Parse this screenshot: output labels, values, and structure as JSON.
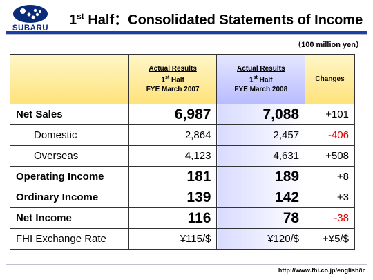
{
  "logo": {
    "text": "SUBARU",
    "icon": "pleiades-stars-logo"
  },
  "title": {
    "sup": "st",
    "prefix": "1",
    "main": " Half：Consolidated Statements of Income"
  },
  "unit": "（100 million yen）",
  "headers": {
    "prev": {
      "line1": "Actual Results",
      "line2_num": "1",
      "line2_sup": "st",
      "line2_rest": " Half",
      "line3": "FYE March 2007"
    },
    "curr": {
      "line1": "Actual Results",
      "line2_num": "1",
      "line2_sup": "st",
      "line2_rest": " Half",
      "line3": "FYE March 2008"
    },
    "changes": "Changes"
  },
  "rows": [
    {
      "label": "Net Sales",
      "prev": "6,987",
      "curr": "7,088",
      "change": "+101"
    },
    {
      "label": "Domestic",
      "prev": "2,864",
      "curr": "2,457",
      "change": "-406"
    },
    {
      "label": "Overseas",
      "prev": "4,123",
      "curr": "4,631",
      "change": "+508"
    },
    {
      "label": "Operating Income",
      "prev": "181",
      "curr": "189",
      "change": "+8"
    },
    {
      "label": "Ordinary Income",
      "prev": "139",
      "curr": "142",
      "change": "+3"
    },
    {
      "label": "Net Income",
      "prev": "116",
      "curr": "78",
      "change": "-38"
    },
    {
      "label": "FHI Exchange Rate",
      "prev": "¥115/$",
      "curr": "¥120/$",
      "change": "+¥5/$"
    }
  ],
  "colors": {
    "accent_blue": "#1b3fa8",
    "negative": "#e00000",
    "header_yellow": "#ffe27a",
    "header_blue": "#b8bcff"
  },
  "footer_url": "http://www.fhi.co.jp/english/ir"
}
